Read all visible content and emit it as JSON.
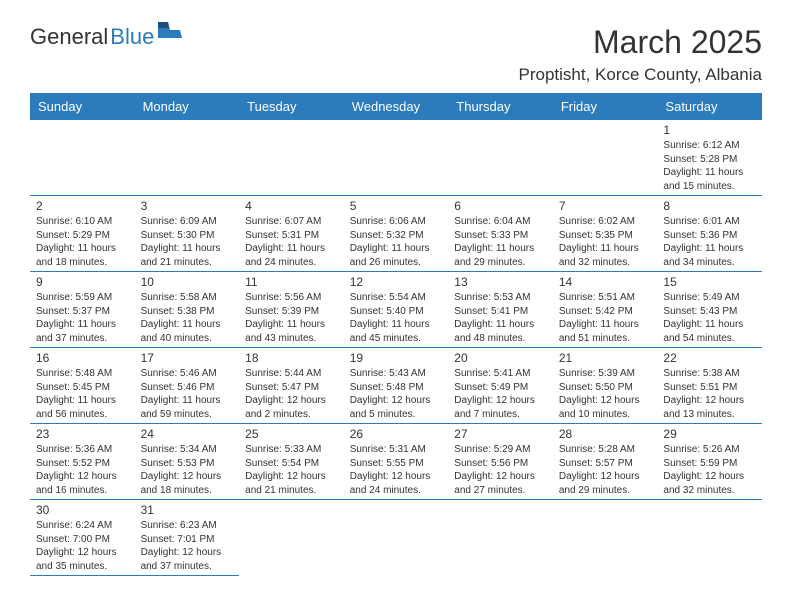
{
  "brand": {
    "text1": "General",
    "text2": "Blue"
  },
  "title": "March 2025",
  "subtitle": "Proptisht, Korce County, Albania",
  "colors": {
    "header_bg": "#2b7bbd",
    "header_text": "#ffffff",
    "border": "#2b7bbd",
    "body_text": "#333333",
    "page_bg": "#ffffff"
  },
  "typography": {
    "title_fontsize": 32,
    "subtitle_fontsize": 17,
    "weekday_fontsize": 13,
    "daynum_fontsize": 12,
    "cell_fontsize": 10
  },
  "layout": {
    "columns": 7,
    "rows": 6,
    "leading_blanks": 6
  },
  "weekdays": [
    "Sunday",
    "Monday",
    "Tuesday",
    "Wednesday",
    "Thursday",
    "Friday",
    "Saturday"
  ],
  "days": [
    {
      "n": "1",
      "sunrise": "6:12 AM",
      "sunset": "5:28 PM",
      "daylight": "11 hours and 15 minutes."
    },
    {
      "n": "2",
      "sunrise": "6:10 AM",
      "sunset": "5:29 PM",
      "daylight": "11 hours and 18 minutes."
    },
    {
      "n": "3",
      "sunrise": "6:09 AM",
      "sunset": "5:30 PM",
      "daylight": "11 hours and 21 minutes."
    },
    {
      "n": "4",
      "sunrise": "6:07 AM",
      "sunset": "5:31 PM",
      "daylight": "11 hours and 24 minutes."
    },
    {
      "n": "5",
      "sunrise": "6:06 AM",
      "sunset": "5:32 PM",
      "daylight": "11 hours and 26 minutes."
    },
    {
      "n": "6",
      "sunrise": "6:04 AM",
      "sunset": "5:33 PM",
      "daylight": "11 hours and 29 minutes."
    },
    {
      "n": "7",
      "sunrise": "6:02 AM",
      "sunset": "5:35 PM",
      "daylight": "11 hours and 32 minutes."
    },
    {
      "n": "8",
      "sunrise": "6:01 AM",
      "sunset": "5:36 PM",
      "daylight": "11 hours and 34 minutes."
    },
    {
      "n": "9",
      "sunrise": "5:59 AM",
      "sunset": "5:37 PM",
      "daylight": "11 hours and 37 minutes."
    },
    {
      "n": "10",
      "sunrise": "5:58 AM",
      "sunset": "5:38 PM",
      "daylight": "11 hours and 40 minutes."
    },
    {
      "n": "11",
      "sunrise": "5:56 AM",
      "sunset": "5:39 PM",
      "daylight": "11 hours and 43 minutes."
    },
    {
      "n": "12",
      "sunrise": "5:54 AM",
      "sunset": "5:40 PM",
      "daylight": "11 hours and 45 minutes."
    },
    {
      "n": "13",
      "sunrise": "5:53 AM",
      "sunset": "5:41 PM",
      "daylight": "11 hours and 48 minutes."
    },
    {
      "n": "14",
      "sunrise": "5:51 AM",
      "sunset": "5:42 PM",
      "daylight": "11 hours and 51 minutes."
    },
    {
      "n": "15",
      "sunrise": "5:49 AM",
      "sunset": "5:43 PM",
      "daylight": "11 hours and 54 minutes."
    },
    {
      "n": "16",
      "sunrise": "5:48 AM",
      "sunset": "5:45 PM",
      "daylight": "11 hours and 56 minutes."
    },
    {
      "n": "17",
      "sunrise": "5:46 AM",
      "sunset": "5:46 PM",
      "daylight": "11 hours and 59 minutes."
    },
    {
      "n": "18",
      "sunrise": "5:44 AM",
      "sunset": "5:47 PM",
      "daylight": "12 hours and 2 minutes."
    },
    {
      "n": "19",
      "sunrise": "5:43 AM",
      "sunset": "5:48 PM",
      "daylight": "12 hours and 5 minutes."
    },
    {
      "n": "20",
      "sunrise": "5:41 AM",
      "sunset": "5:49 PM",
      "daylight": "12 hours and 7 minutes."
    },
    {
      "n": "21",
      "sunrise": "5:39 AM",
      "sunset": "5:50 PM",
      "daylight": "12 hours and 10 minutes."
    },
    {
      "n": "22",
      "sunrise": "5:38 AM",
      "sunset": "5:51 PM",
      "daylight": "12 hours and 13 minutes."
    },
    {
      "n": "23",
      "sunrise": "5:36 AM",
      "sunset": "5:52 PM",
      "daylight": "12 hours and 16 minutes."
    },
    {
      "n": "24",
      "sunrise": "5:34 AM",
      "sunset": "5:53 PM",
      "daylight": "12 hours and 18 minutes."
    },
    {
      "n": "25",
      "sunrise": "5:33 AM",
      "sunset": "5:54 PM",
      "daylight": "12 hours and 21 minutes."
    },
    {
      "n": "26",
      "sunrise": "5:31 AM",
      "sunset": "5:55 PM",
      "daylight": "12 hours and 24 minutes."
    },
    {
      "n": "27",
      "sunrise": "5:29 AM",
      "sunset": "5:56 PM",
      "daylight": "12 hours and 27 minutes."
    },
    {
      "n": "28",
      "sunrise": "5:28 AM",
      "sunset": "5:57 PM",
      "daylight": "12 hours and 29 minutes."
    },
    {
      "n": "29",
      "sunrise": "5:26 AM",
      "sunset": "5:59 PM",
      "daylight": "12 hours and 32 minutes."
    },
    {
      "n": "30",
      "sunrise": "6:24 AM",
      "sunset": "7:00 PM",
      "daylight": "12 hours and 35 minutes."
    },
    {
      "n": "31",
      "sunrise": "6:23 AM",
      "sunset": "7:01 PM",
      "daylight": "12 hours and 37 minutes."
    }
  ],
  "labels": {
    "sunrise": "Sunrise:",
    "sunset": "Sunset:",
    "daylight": "Daylight:"
  }
}
